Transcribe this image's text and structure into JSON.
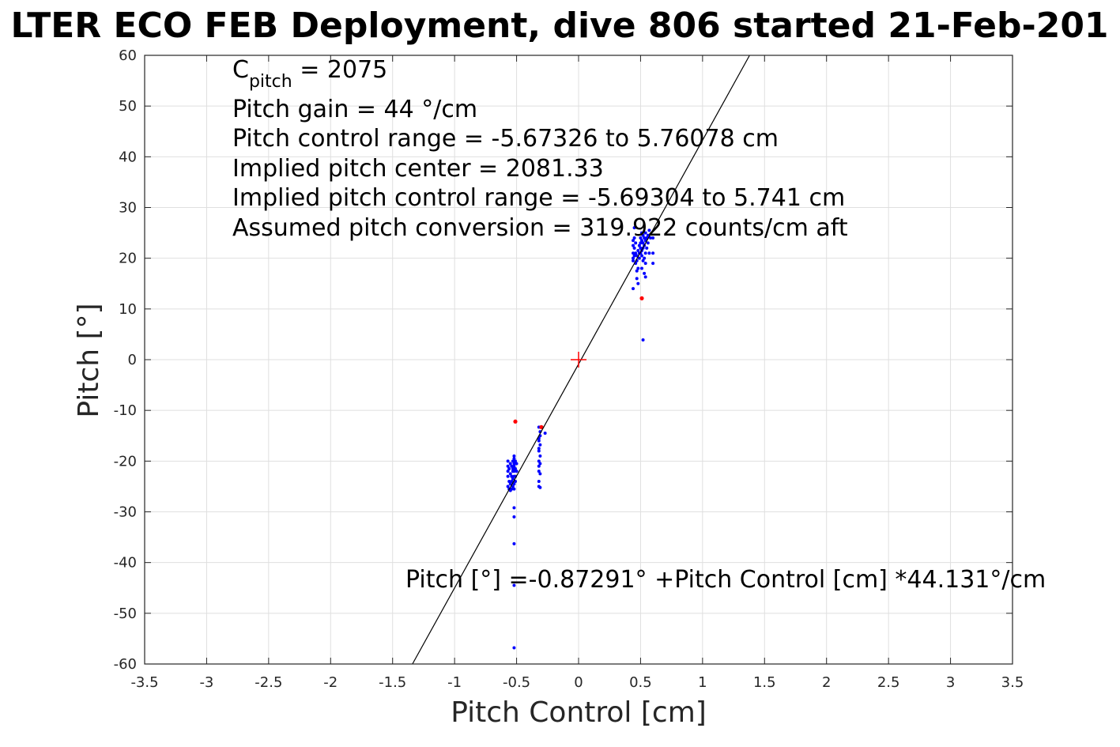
{
  "chart_data": {
    "type": "scatter",
    "title": "LTER ECO FEB Deployment, dive 806 started 21-Feb-201",
    "xlabel": "Pitch Control [cm]",
    "ylabel": "Pitch [°]",
    "xlim": [
      -3.5,
      3.5
    ],
    "ylim": [
      -60,
      60
    ],
    "grid": true,
    "x_ticks": [
      "-3.5",
      "-3",
      "-2.5",
      "-2",
      "-1.5",
      "-1",
      "-0.5",
      "0",
      "0.5",
      "1",
      "1.5",
      "2",
      "2.5",
      "3",
      "3.5"
    ],
    "y_ticks": [
      "60",
      "50",
      "40",
      "30",
      "20",
      "10",
      "0",
      "-10",
      "-20",
      "-30",
      "-40",
      "-50",
      "-60"
    ],
    "annotation_lines": {
      "cpitch_base": "C",
      "cpitch_sub": "pitch",
      "cpitch_value": " = 2075",
      "line2": "Pitch gain = 44 °/cm",
      "line3": "Pitch control range = -5.67326 to 5.76078 cm",
      "line4": "Implied pitch center = 2081.33",
      "line5": "Implied pitch control range = -5.69304 to 5.741 cm",
      "line6": "Assumed pitch conversion = 319.922 counts/cm aft"
    },
    "fit_label": "Pitch [°] =-0.87291° +Pitch Control [cm] *44.131°/cm",
    "fit": {
      "intercept": -0.87291,
      "slope": 44.131,
      "color": "#000000"
    },
    "center_marker": {
      "x": 0,
      "y": 0,
      "color": "#ff0000"
    },
    "series": [
      {
        "color": "#0000ff",
        "points": [
          [
            -0.57,
            -20
          ],
          [
            -0.57,
            -21
          ],
          [
            -0.57,
            -22
          ],
          [
            -0.57,
            -23
          ],
          [
            -0.57,
            -25
          ],
          [
            -0.56,
            -21.5
          ],
          [
            -0.56,
            -24
          ],
          [
            -0.56,
            -25.5
          ],
          [
            -0.55,
            -20.5
          ],
          [
            -0.55,
            -22.5
          ],
          [
            -0.55,
            -24.5
          ],
          [
            -0.55,
            -25.8
          ],
          [
            -0.54,
            -21
          ],
          [
            -0.54,
            -23
          ],
          [
            -0.54,
            -24
          ],
          [
            -0.54,
            -25.5
          ],
          [
            -0.53,
            -20
          ],
          [
            -0.53,
            -21.5
          ],
          [
            -0.53,
            -22
          ],
          [
            -0.53,
            -23.5
          ],
          [
            -0.53,
            -25
          ],
          [
            -0.52,
            -19
          ],
          [
            -0.52,
            -19.5
          ],
          [
            -0.52,
            -20.5
          ],
          [
            -0.52,
            -21
          ],
          [
            -0.52,
            -22
          ],
          [
            -0.52,
            -23
          ],
          [
            -0.52,
            -24.5
          ],
          [
            -0.52,
            -25.5
          ],
          [
            -0.51,
            -20
          ],
          [
            -0.51,
            -21.5
          ],
          [
            -0.51,
            -23
          ],
          [
            -0.51,
            -24
          ],
          [
            -0.5,
            -20.5
          ],
          [
            -0.5,
            -22
          ],
          [
            -0.52,
            -29.2
          ],
          [
            -0.52,
            -31
          ],
          [
            -0.52,
            -36.3
          ],
          [
            -0.52,
            -44.5
          ],
          [
            -0.52,
            -56.8
          ],
          [
            -0.32,
            -13.3
          ],
          [
            -0.32,
            -15.5
          ],
          [
            -0.32,
            -16
          ],
          [
            -0.32,
            -17.5
          ],
          [
            -0.32,
            -18
          ],
          [
            -0.32,
            -20
          ],
          [
            -0.32,
            -21
          ],
          [
            -0.32,
            -22
          ],
          [
            -0.32,
            -24
          ],
          [
            -0.32,
            -25
          ],
          [
            -0.31,
            -14.2
          ],
          [
            -0.31,
            -15
          ],
          [
            -0.31,
            -16.8
          ],
          [
            -0.31,
            -19
          ],
          [
            -0.31,
            -20.5
          ],
          [
            -0.31,
            -22.5
          ],
          [
            -0.31,
            -25.2
          ],
          [
            -0.27,
            -14.5
          ],
          [
            0.44,
            14
          ],
          [
            0.44,
            19.5
          ],
          [
            0.44,
            20
          ],
          [
            0.44,
            21
          ],
          [
            0.44,
            22.5
          ],
          [
            0.44,
            23.5
          ],
          [
            0.45,
            20.5
          ],
          [
            0.45,
            22
          ],
          [
            0.45,
            24
          ],
          [
            0.45,
            26
          ],
          [
            0.46,
            19
          ],
          [
            0.46,
            21
          ],
          [
            0.46,
            23
          ],
          [
            0.47,
            16
          ],
          [
            0.47,
            17.5
          ],
          [
            0.47,
            19.5
          ],
          [
            0.47,
            20.5
          ],
          [
            0.48,
            15
          ],
          [
            0.48,
            18
          ],
          [
            0.48,
            21.5
          ],
          [
            0.49,
            20
          ],
          [
            0.49,
            21
          ],
          [
            0.49,
            22.5
          ],
          [
            0.5,
            21
          ],
          [
            0.5,
            22
          ],
          [
            0.5,
            23
          ],
          [
            0.5,
            24
          ],
          [
            0.51,
            18
          ],
          [
            0.51,
            20.5
          ],
          [
            0.51,
            21.5
          ],
          [
            0.51,
            23.5
          ],
          [
            0.51,
            25
          ],
          [
            0.52,
            19.5
          ],
          [
            0.52,
            22
          ],
          [
            0.52,
            23
          ],
          [
            0.52,
            24.5
          ],
          [
            0.53,
            17
          ],
          [
            0.53,
            20
          ],
          [
            0.53,
            22.5
          ],
          [
            0.53,
            24
          ],
          [
            0.54,
            16.3
          ],
          [
            0.54,
            19
          ],
          [
            0.54,
            21
          ],
          [
            0.54,
            23.5
          ],
          [
            0.54,
            25
          ],
          [
            0.55,
            22
          ],
          [
            0.55,
            24
          ],
          [
            0.56,
            23
          ],
          [
            0.56,
            24.5
          ],
          [
            0.57,
            21
          ],
          [
            0.57,
            25.5
          ],
          [
            0.58,
            24
          ],
          [
            0.6,
            19
          ],
          [
            0.6,
            21
          ],
          [
            0.6,
            24
          ],
          [
            0.52,
            3.9
          ]
        ]
      },
      {
        "color": "#ff0000",
        "points": [
          [
            -0.51,
            -12.2
          ],
          [
            -0.3,
            -13.3
          ],
          [
            0.51,
            12.1
          ]
        ]
      }
    ]
  }
}
